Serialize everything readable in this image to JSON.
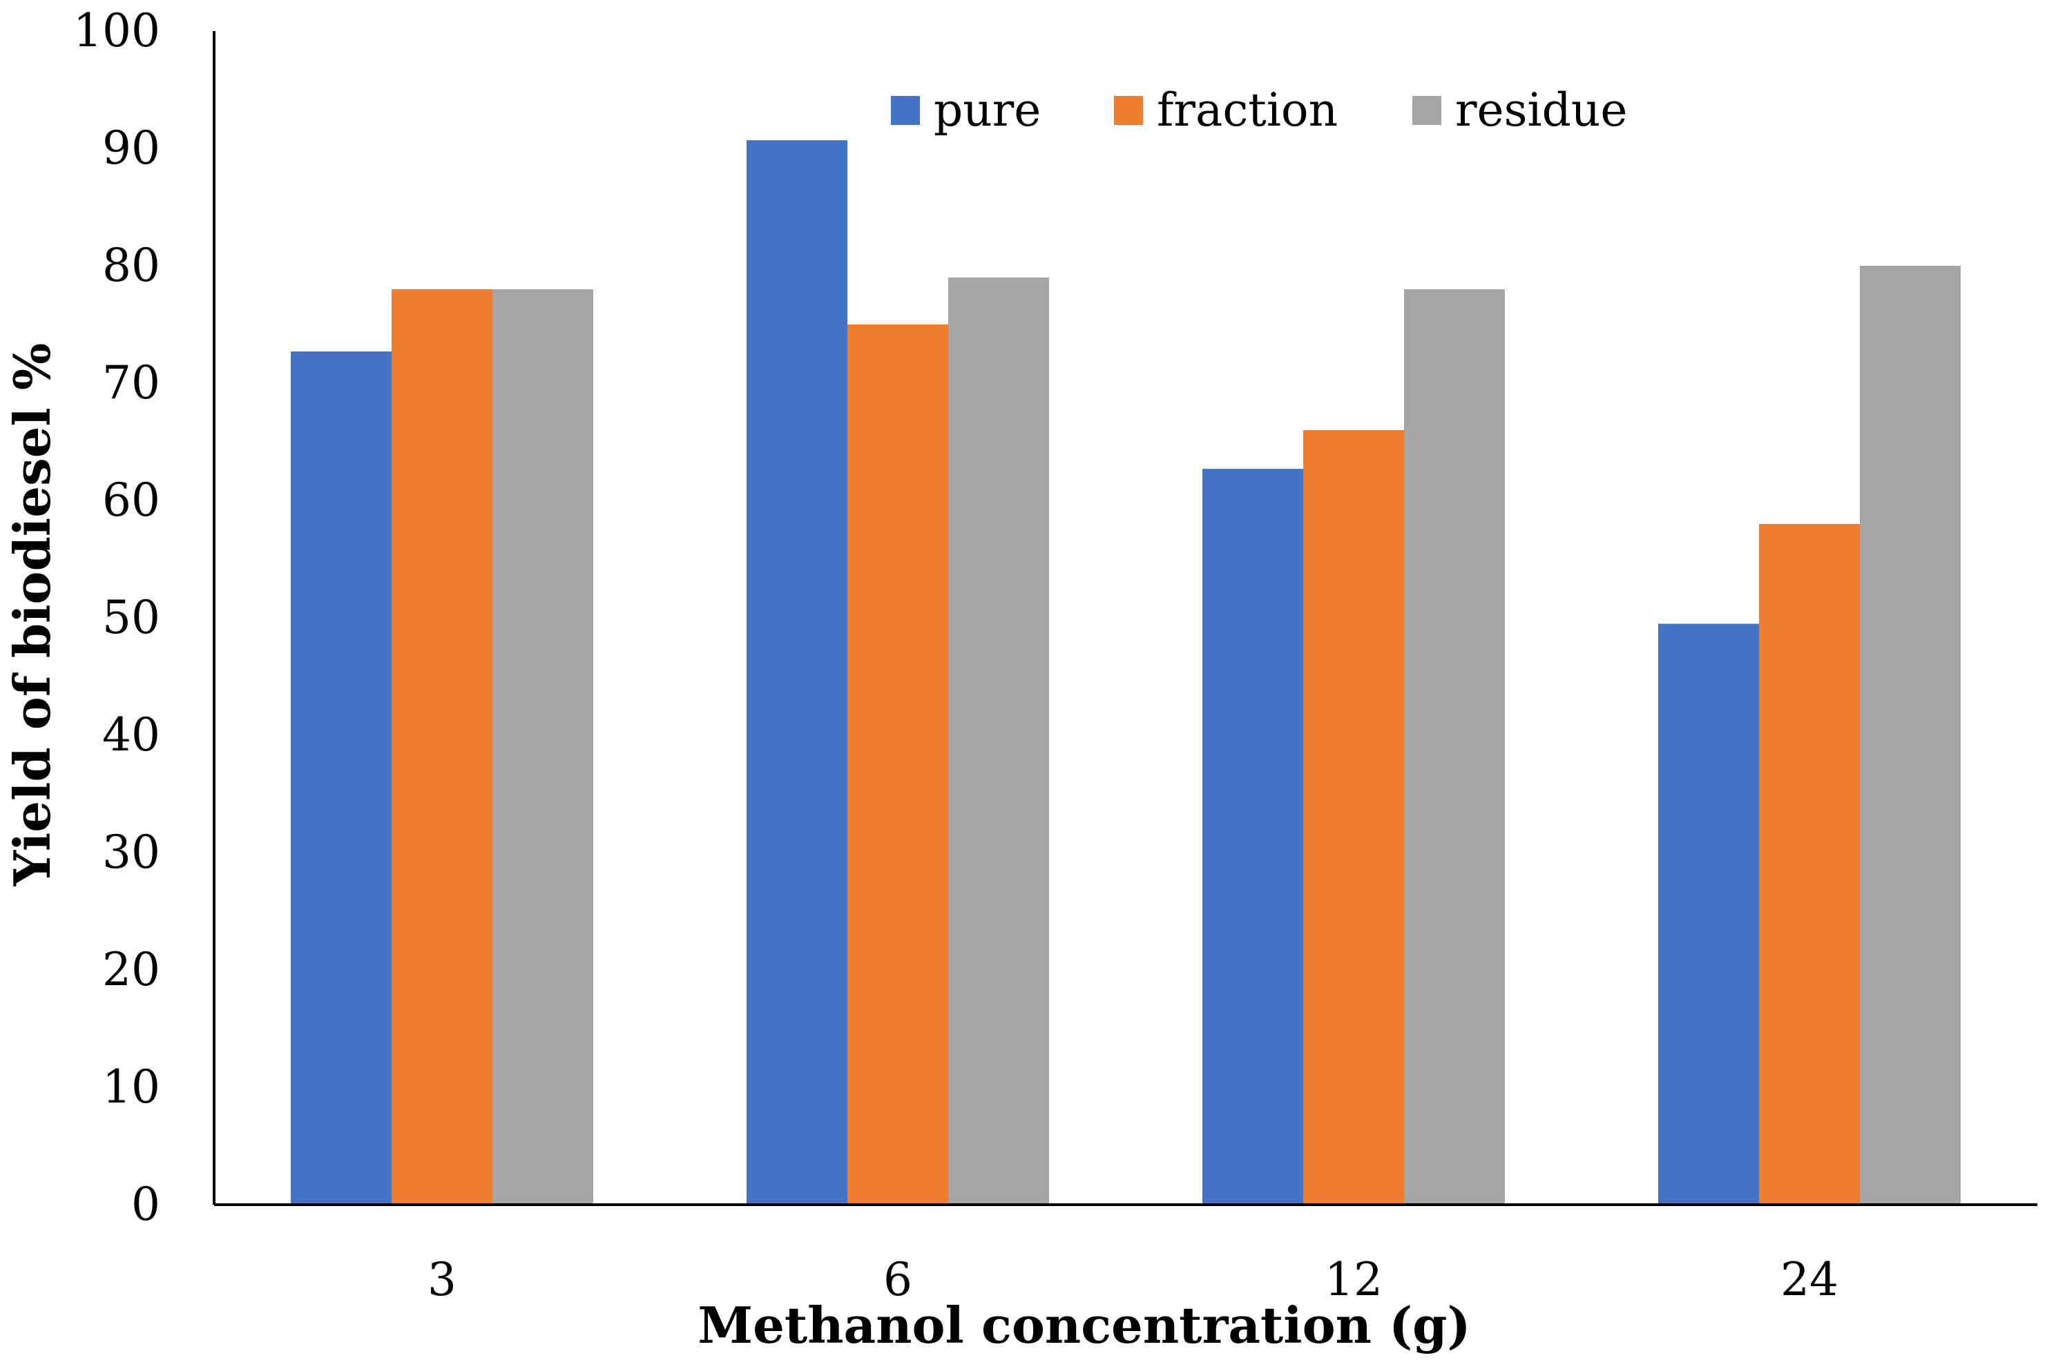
{
  "chart_data": {
    "type": "bar",
    "title": "",
    "categories": [
      "3",
      "6",
      "12",
      "24"
    ],
    "series": [
      {
        "name": "pure",
        "color": "#4472C4",
        "values": [
          72.7,
          90.7,
          62.7,
          49.5
        ]
      },
      {
        "name": "fraction",
        "color": "#ED7D31",
        "values": [
          78,
          75,
          66,
          58
        ]
      },
      {
        "name": "residue",
        "color": "#A5A5A5",
        "values": [
          78,
          79,
          78,
          80
        ]
      }
    ],
    "xlabel": "Methanol concentration (g)",
    "ylabel": "Yield of biodiesel %",
    "ylim": [
      0,
      100
    ],
    "yticks": [
      0,
      10,
      20,
      30,
      40,
      50,
      60,
      70,
      80,
      90,
      100
    ],
    "grid": false,
    "legend_position": "top-right"
  }
}
